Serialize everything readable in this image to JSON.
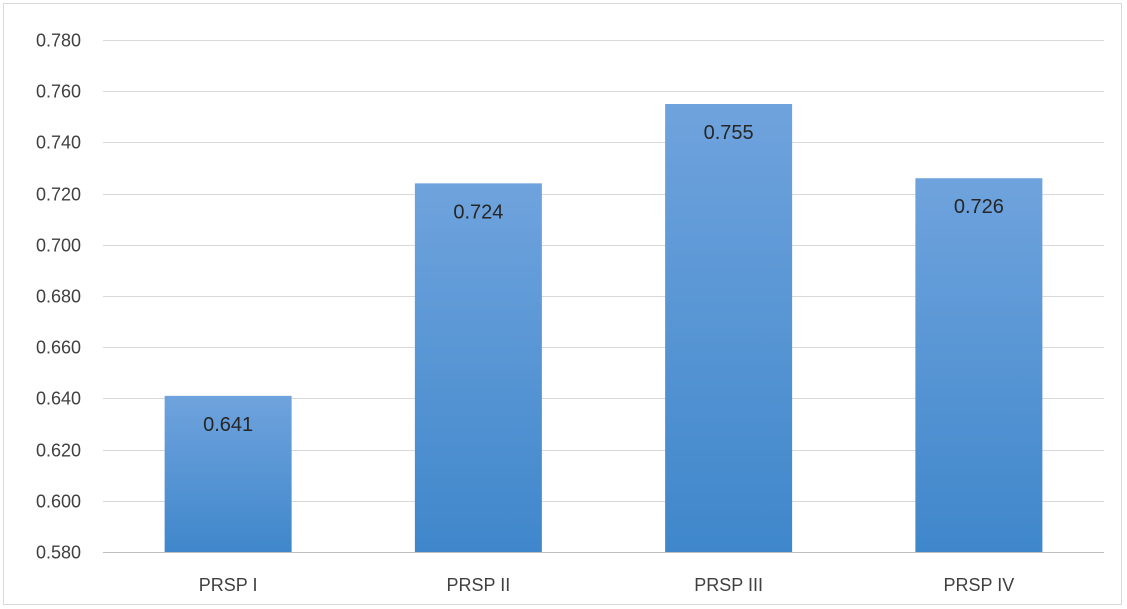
{
  "chart_data": {
    "type": "bar",
    "categories": [
      "PRSP I",
      "PRSP II",
      "PRSP III",
      "PRSP IV"
    ],
    "values": [
      0.641,
      0.724,
      0.755,
      0.726
    ],
    "data_labels": [
      "0.641",
      "0.724",
      "0.755",
      "0.726"
    ],
    "title": "",
    "xlabel": "",
    "ylabel": "",
    "ylim": [
      0.58,
      0.78
    ],
    "y_ticks": [
      0.58,
      0.6,
      0.62,
      0.64,
      0.66,
      0.68,
      0.7,
      0.72,
      0.74,
      0.76,
      0.78
    ],
    "y_tick_labels": [
      "0.580",
      "0.600",
      "0.620",
      "0.640",
      "0.660",
      "0.680",
      "0.700",
      "0.720",
      "0.740",
      "0.760",
      "0.780"
    ],
    "grid": true,
    "legend": "none",
    "colors": {
      "bar_top": "#6fa3dd",
      "bar_bottom": "#3f87cb",
      "grid": "#d9d9d9",
      "axis": "#bfbfbf",
      "text": "#404040"
    }
  }
}
